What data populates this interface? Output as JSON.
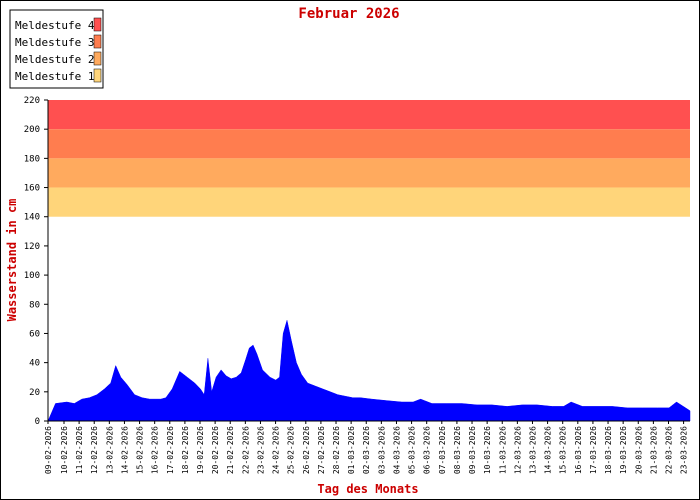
{
  "chart_data": {
    "type": "area",
    "title": "Februar 2026",
    "xlabel": "Tag des Monats",
    "ylabel": "Wasserstand in cm",
    "ylim": [
      0,
      220
    ],
    "yticks": [
      0,
      20,
      40,
      60,
      80,
      100,
      120,
      140,
      160,
      180,
      200,
      220
    ],
    "grid": false,
    "legend_position": "top-left",
    "colors": {
      "series": "#0000ff",
      "title": "#cc0000",
      "axis_label": "#cc0000",
      "band_1": "#ffd57a",
      "band_2": "#ffaa5e",
      "band_3": "#ff7d4f",
      "band_4": "#ff5050"
    },
    "warning_levels": [
      {
        "name": "Meldestufe 4",
        "from": 200,
        "to": 220,
        "color": "#ff5050"
      },
      {
        "name": "Meldestufe 3",
        "from": 180,
        "to": 200,
        "color": "#ff7d4f"
      },
      {
        "name": "Meldestufe 2",
        "from": 160,
        "to": 180,
        "color": "#ffaa5e"
      },
      {
        "name": "Meldestufe 1",
        "from": 140,
        "to": 160,
        "color": "#ffd57a"
      }
    ],
    "x_start_label": "09-02-2026",
    "x_tick_labels": [
      "10-02-2026",
      "11-02-2026",
      "12-02-2026",
      "13-02-2026",
      "14-02-2026",
      "15-02-2026",
      "16-02-2026",
      "17-02-2026",
      "18-02-2026",
      "19-02-2026",
      "20-02-2026",
      "21-02-2026",
      "22-02-2026",
      "23-02-2026",
      "24-02-2026",
      "25-02-2026",
      "26-02-2026",
      "27-02-2026",
      "28-02-2026",
      "01-03-2026",
      "02-03-2026",
      "03-03-2026",
      "04-03-2026",
      "05-03-2026",
      "06-03-2026",
      "07-03-2026",
      "08-03-2026",
      "09-03-2026",
      "10-03-2026",
      "11-03-2026",
      "12-03-2026",
      "13-03-2026",
      "14-03-2026",
      "15-03-2026",
      "16-03-2026",
      "17-03-2026",
      "18-03-2026",
      "19-03-2026",
      "20-03-2026",
      "21-03-2026",
      "22-03-2026",
      "23-03-2026"
    ],
    "series": [
      {
        "x": [
          "09-02",
          "10-02",
          "10-02",
          "11-02",
          "11-02",
          "12-02",
          "12-02",
          "13-02",
          "13-02",
          "13-02",
          "14-02",
          "14-02",
          "15-02",
          "15-02",
          "16-02",
          "16-02",
          "16-02",
          "17-02",
          "17-02",
          "18-02",
          "18-02",
          "19-02",
          "19-02",
          "19-02",
          "19-02",
          "20-02",
          "20-02",
          "20-02",
          "21-02",
          "21-02",
          "21-02",
          "22-02",
          "22-02",
          "22-02",
          "22-02",
          "23-02",
          "23-02",
          "24-02",
          "24-02",
          "24-02",
          "24-02",
          "25-02",
          "25-02",
          "25-02",
          "26-02",
          "26-02",
          "27-02",
          "27-02",
          "28-02",
          "28-02",
          "01-03",
          "01-03",
          "02-03",
          "03-03",
          "04-03",
          "05-03",
          "05-03",
          "06-03",
          "07-03",
          "08-03",
          "09-03",
          "10-03",
          "11-03",
          "12-03",
          "13-03",
          "14-03",
          "15-03",
          "15-03",
          "16-03",
          "17-03",
          "18-03",
          "19-03",
          "20-03",
          "21-03",
          "22-03",
          "22-03",
          "23-03",
          "24-03"
        ],
        "values": [
          12,
          13,
          12,
          15,
          16,
          18,
          22,
          26,
          38,
          30,
          25,
          18,
          16,
          15,
          15,
          15,
          16,
          22,
          34,
          30,
          26,
          22,
          18,
          43,
          20,
          30,
          35,
          31,
          29,
          30,
          33,
          42,
          50,
          52,
          46,
          35,
          30,
          28,
          30,
          60,
          69,
          55,
          40,
          32,
          26,
          24,
          22,
          20,
          18,
          17,
          16,
          16,
          15,
          14,
          13,
          13,
          15,
          12,
          12,
          12,
          11,
          11,
          10,
          11,
          11,
          10,
          10,
          13,
          10,
          10,
          10,
          9,
          9,
          9,
          9,
          13,
          8,
          7
        ]
      }
    ]
  }
}
